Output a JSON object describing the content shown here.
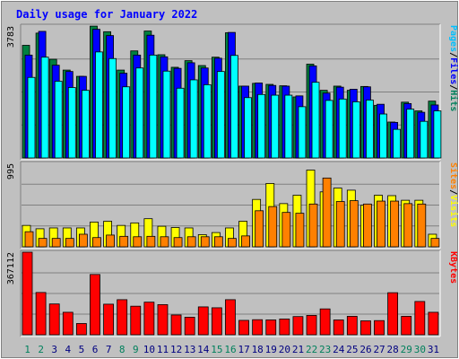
{
  "chart_data": {
    "type": "bar",
    "title": "Daily usage for January 2022",
    "categories": [
      "1",
      "2",
      "3",
      "4",
      "5",
      "6",
      "7",
      "8",
      "9",
      "10",
      "11",
      "12",
      "13",
      "14",
      "15",
      "16",
      "17",
      "18",
      "19",
      "20",
      "21",
      "22",
      "23",
      "24",
      "25",
      "26",
      "27",
      "28",
      "29",
      "30",
      "31"
    ],
    "weekend_days": [
      1,
      2,
      8,
      9,
      15,
      16,
      22,
      23,
      29,
      30
    ],
    "panels": [
      {
        "id": "hits",
        "ymax": 3783,
        "ymax_label": "3783",
        "side_label": [
          "Pages",
          "Files",
          "Hits"
        ],
        "series": [
          {
            "name": "Hits",
            "color": "#008040",
            "values": [
              3230,
              3580,
              2830,
              2520,
              2340,
              3780,
              3620,
              2520,
              3070,
              3640,
              2960,
              2600,
              2790,
              2650,
              2890,
              3590,
              2060,
              2140,
              2110,
              2070,
              1750,
              2690,
              1940,
              2060,
              1940,
              2050,
              1510,
              1030,
              1600,
              1350,
              1630
            ]
          },
          {
            "name": "Files",
            "color": "#0000ff",
            "values": [
              2950,
              3630,
              2660,
              2480,
              2340,
              3690,
              3510,
              2430,
              2950,
              3520,
              2900,
              2570,
              2730,
              2580,
              2860,
              3600,
              2060,
              2150,
              2080,
              2060,
              1780,
              2640,
              1860,
              2030,
              1970,
              2040,
              1540,
              1020,
              1560,
              1310,
              1520
            ]
          },
          {
            "name": "Pages",
            "color": "#00ffff",
            "values": [
              2310,
              2890,
              2200,
              2020,
              1940,
              3040,
              2850,
              2040,
              2580,
              2950,
              2490,
              2000,
              2240,
              2100,
              2480,
              2940,
              1730,
              1820,
              1800,
              1800,
              1470,
              2170,
              1650,
              1690,
              1610,
              1660,
              1260,
              820,
              1400,
              1050,
              1350
            ]
          }
        ]
      },
      {
        "id": "visits",
        "ymax": 995,
        "ymax_label": "995",
        "side_label": [
          "Sites",
          "Visits"
        ],
        "series": [
          {
            "name": "Visits",
            "color": "#ffff00",
            "values": [
              255,
              215,
              225,
              225,
              225,
              295,
              305,
              255,
              285,
              335,
              245,
              230,
              225,
              145,
              170,
              225,
              305,
              565,
              755,
              515,
              615,
              915,
              655,
              700,
              675,
              495,
              615,
              610,
              555,
              555,
              150
            ]
          },
          {
            "name": "Sites",
            "color": "#ff8000",
            "values": [
              180,
              100,
              100,
              100,
              150,
              110,
              140,
              125,
              120,
              125,
              120,
              110,
              120,
              120,
              120,
              100,
              130,
              430,
              480,
              410,
              400,
              510,
              820,
              540,
              550,
              510,
              545,
              545,
              515,
              510,
              100
            ]
          }
        ]
      },
      {
        "id": "kbytes",
        "ymax": 367112,
        "ymax_label": "367112",
        "side_label": [
          "KBytes"
        ],
        "series": [
          {
            "name": "KBytes",
            "color": "#ff0000",
            "values": [
              367112,
              188000,
              137000,
              100000,
              50000,
              268000,
              136000,
              156000,
              127000,
              145000,
              134000,
              88000,
              78000,
              124000,
              120000,
              156000,
              64000,
              67000,
              66000,
              70000,
              81000,
              86000,
              115000,
              66000,
              82000,
              62000,
              63000,
              187000,
              82000,
              148000,
              100000
            ]
          }
        ]
      }
    ],
    "colors": {
      "title_text": "#0000ff",
      "weekday_label": "#000080",
      "weekend_label": "#00805c",
      "hits_label": "#00805c",
      "files_label": "#0000ff",
      "pages_label": "#00c0ff",
      "visits_label": "#ffff00",
      "sites_label": "#ff8000",
      "kbytes_label": "#ff0000",
      "panel_bg": "#c0c0c0",
      "grid": "#808080"
    }
  }
}
